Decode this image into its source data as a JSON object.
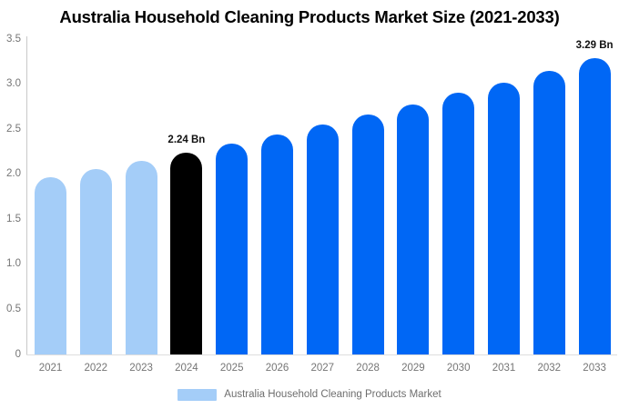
{
  "chart_data": {
    "type": "bar",
    "title": "Australia Household Cleaning Products Market Size (2021-2033)",
    "unit": "Bn",
    "categories": [
      "2021",
      "2022",
      "2023",
      "2024",
      "2025",
      "2026",
      "2027",
      "2028",
      "2029",
      "2030",
      "2031",
      "2032",
      "2033"
    ],
    "values": [
      1.97,
      2.06,
      2.15,
      2.24,
      2.34,
      2.44,
      2.55,
      2.66,
      2.77,
      2.9,
      3.02,
      3.15,
      3.29
    ],
    "bar_color_keys": [
      "light",
      "light",
      "light",
      "highlight",
      "primary",
      "primary",
      "primary",
      "primary",
      "primary",
      "primary",
      "primary",
      "primary",
      "primary"
    ],
    "annotations": [
      {
        "index": 3,
        "text": "2.24 Bn"
      },
      {
        "index": 12,
        "text": "3.29 Bn"
      }
    ],
    "yticks": [
      "0",
      "0.5",
      "1.0",
      "1.5",
      "2.0",
      "2.5",
      "3.0",
      "3.5"
    ],
    "ylim": [
      0,
      3.5
    ],
    "grid": false,
    "legend": "Australia Household Cleaning Products Market",
    "legend_position": "bottom-center",
    "colors": {
      "primary": "#0067f5",
      "light": "#a4cdf8",
      "highlight": "#000000",
      "axis_text": "#757575",
      "axis_line": "#c9c9c9"
    }
  }
}
